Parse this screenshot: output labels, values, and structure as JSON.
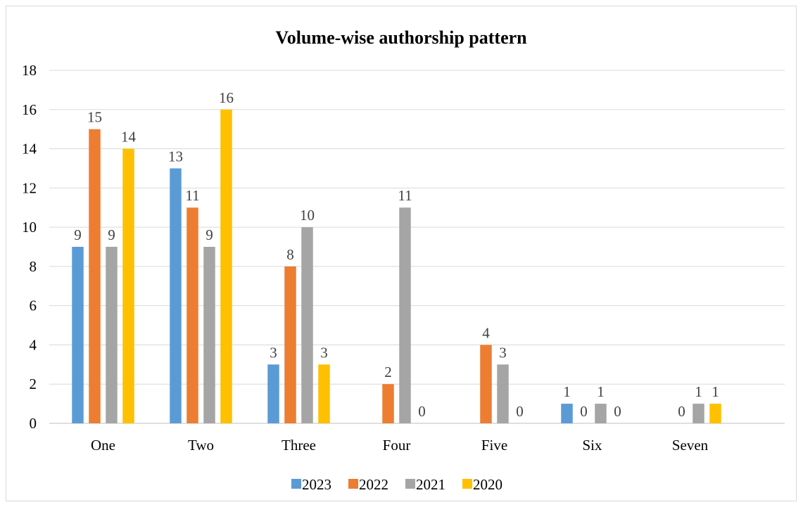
{
  "chart_data": {
    "type": "bar",
    "title": "Volume-wise authorship pattern",
    "xlabel": "",
    "ylabel": "",
    "categories": [
      "One",
      "Two",
      "Three",
      "Four",
      "Five",
      "Six",
      "Seven"
    ],
    "series": [
      {
        "name": "2023",
        "color": "#5b9bd5",
        "values": [
          9,
          13,
          3,
          0,
          0,
          1,
          0
        ]
      },
      {
        "name": "2022",
        "color": "#ed7d31",
        "values": [
          15,
          11,
          8,
          2,
          4,
          0,
          0
        ]
      },
      {
        "name": "2021",
        "color": "#a5a5a5",
        "values": [
          9,
          9,
          10,
          11,
          3,
          1,
          1
        ]
      },
      {
        "name": "2020",
        "color": "#ffc000",
        "values": [
          14,
          16,
          3,
          0,
          0,
          0,
          1
        ]
      }
    ],
    "ylim": [
      0,
      18
    ],
    "yticks": [
      0,
      2,
      4,
      6,
      8,
      10,
      12,
      14,
      16,
      18
    ],
    "grid": true,
    "legend_position": "bottom",
    "data_labels_shown": [
      [
        true,
        true,
        true,
        false,
        false,
        true,
        false
      ],
      [
        true,
        true,
        true,
        true,
        true,
        true,
        true
      ],
      [
        true,
        true,
        true,
        true,
        true,
        true,
        true
      ],
      [
        true,
        true,
        true,
        true,
        true,
        true,
        true
      ]
    ]
  }
}
